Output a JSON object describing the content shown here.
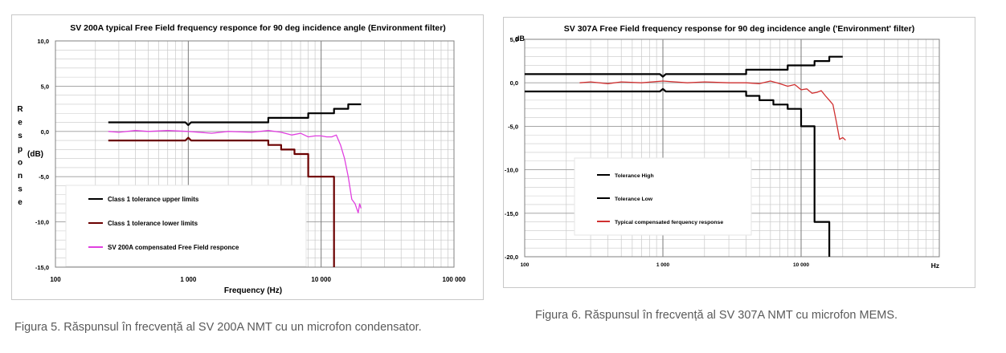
{
  "colors": {
    "black": "#000000",
    "darkred": "#6b0000",
    "magenta": "#e040e0",
    "red": "#d03030",
    "grid": "#c8c8c8",
    "axis": "#808080"
  },
  "chart_data": [
    {
      "type": "line",
      "title": "SV 200A typical Free Field frequency responce for 90 deg incidence angle (Environment filter)",
      "xlabel": "Frequency (Hz)",
      "ylabel_letters": [
        "R",
        "e",
        "s",
        "p",
        "o",
        "n",
        "s",
        "e"
      ],
      "ylabel_unit": "(dB)",
      "x_scale": "log",
      "xlim": [
        100,
        100000
      ],
      "ylim": [
        -15,
        10
      ],
      "x_ticks": [
        100,
        1000,
        10000,
        100000
      ],
      "x_tick_labels": [
        "100",
        "1 000",
        "10 000",
        "100 000"
      ],
      "y_ticks": [
        -15,
        -10,
        -5,
        0,
        5,
        10
      ],
      "y_tick_labels": [
        "-15,0",
        "-10,0",
        "-5,0",
        "0,0",
        "5,0",
        "10,0"
      ],
      "grid": true,
      "legend_position": "bottom-left",
      "series": [
        {
          "name": "Class 1 tolerance upper limits",
          "color": "#000000",
          "x": [
            250,
            950,
            1000,
            1050,
            4000,
            4000,
            8000,
            8000,
            12500,
            12500,
            16000,
            16000,
            20000
          ],
          "y": [
            1,
            1,
            0.7,
            1,
            1,
            1.5,
            1.5,
            2,
            2,
            2.5,
            2.5,
            3,
            3
          ]
        },
        {
          "name": "Class 1 tolerance lower limits",
          "color": "#6b0000",
          "x": [
            250,
            950,
            1000,
            1050,
            4000,
            4000,
            5000,
            5000,
            6300,
            6300,
            8000,
            8000,
            10000,
            10000,
            12500,
            12500
          ],
          "y": [
            -1,
            -1,
            -0.7,
            -1,
            -1,
            -1.5,
            -1.5,
            -2,
            -2,
            -2.5,
            -2.5,
            -5,
            -5,
            -5,
            -5,
            -15
          ]
        },
        {
          "name": "SV 200A compensated Free Field responce",
          "color": "#e040e0",
          "x": [
            250,
            300,
            400,
            500,
            700,
            1000,
            1500,
            2000,
            3000,
            4000,
            5000,
            6000,
            7000,
            8000,
            9000,
            10000,
            11000,
            12000,
            13000,
            14000,
            15000,
            16000,
            17000,
            18000,
            19000,
            19500,
            20000
          ],
          "y": [
            0,
            -0.1,
            0.1,
            0,
            0.1,
            0,
            -0.2,
            0,
            -0.1,
            0.1,
            -0.1,
            -0.4,
            -0.2,
            -0.6,
            -0.5,
            -0.5,
            -0.6,
            -0.6,
            -0.4,
            -1.5,
            -3,
            -5,
            -7.5,
            -8,
            -9,
            -8,
            -8.5
          ]
        }
      ]
    },
    {
      "type": "line",
      "title": "SV 307A Free Field frequency response for 90 deg incidence angle ('Environment' filter)",
      "xlabel": "Hz",
      "ylabel": "dB",
      "x_scale": "log",
      "xlim": [
        100,
        100000
      ],
      "ylim": [
        -20,
        5
      ],
      "x_ticks": [
        100,
        1000,
        10000
      ],
      "x_tick_labels": [
        "100",
        "1 000",
        "10 000"
      ],
      "y_ticks": [
        -20,
        -15,
        -10,
        -5,
        0,
        5
      ],
      "y_tick_labels": [
        "-20,0",
        "-15,0",
        "-10,0",
        "-5,0",
        "0,0",
        "5,0"
      ],
      "grid": true,
      "legend_position": "bottom-left",
      "series": [
        {
          "name": "Tolerance High",
          "color": "#000000",
          "x": [
            100,
            950,
            1000,
            1050,
            4000,
            4000,
            8000,
            8000,
            12500,
            12500,
            16000,
            16000,
            20000
          ],
          "y": [
            1,
            1,
            0.7,
            1,
            1,
            1.5,
            1.5,
            2,
            2,
            2.5,
            2.5,
            3,
            3
          ]
        },
        {
          "name": "Tolerance Low",
          "color": "#000000",
          "x": [
            100,
            950,
            1000,
            1050,
            4000,
            4000,
            5000,
            5000,
            6300,
            6300,
            8000,
            8000,
            10000,
            10000,
            12500,
            12500,
            16000,
            16000
          ],
          "y": [
            -1,
            -1,
            -0.7,
            -1,
            -1,
            -1.5,
            -1.5,
            -2,
            -2,
            -2.5,
            -2.5,
            -3,
            -3,
            -5,
            -5,
            -16,
            -16,
            -20
          ]
        },
        {
          "name": "Typical compensated ferquency response",
          "color": "#d03030",
          "x": [
            250,
            300,
            400,
            500,
            700,
            1000,
            1500,
            2000,
            3000,
            4000,
            5000,
            6000,
            7000,
            8000,
            9000,
            10000,
            11000,
            12000,
            13000,
            14000,
            15000,
            16000,
            17000,
            18000,
            19000,
            20000,
            21000
          ],
          "y": [
            0,
            0.1,
            -0.1,
            0.1,
            0,
            0.2,
            0,
            0.1,
            0,
            0,
            -0.1,
            0.2,
            -0.1,
            -0.4,
            -0.2,
            -0.8,
            -0.7,
            -1.2,
            -1.1,
            -0.9,
            -1.5,
            -2,
            -2.5,
            -4.5,
            -6.5,
            -6.3,
            -6.6
          ]
        }
      ]
    }
  ],
  "captions": {
    "fig5": "Figura 5. Răspunsul în frecvență al SV 200A NMT cu un microfon condensator.",
    "fig6": "Figura 6. Răspunsul în frecvență al SV 307A NMT cu microfon MEMS."
  }
}
